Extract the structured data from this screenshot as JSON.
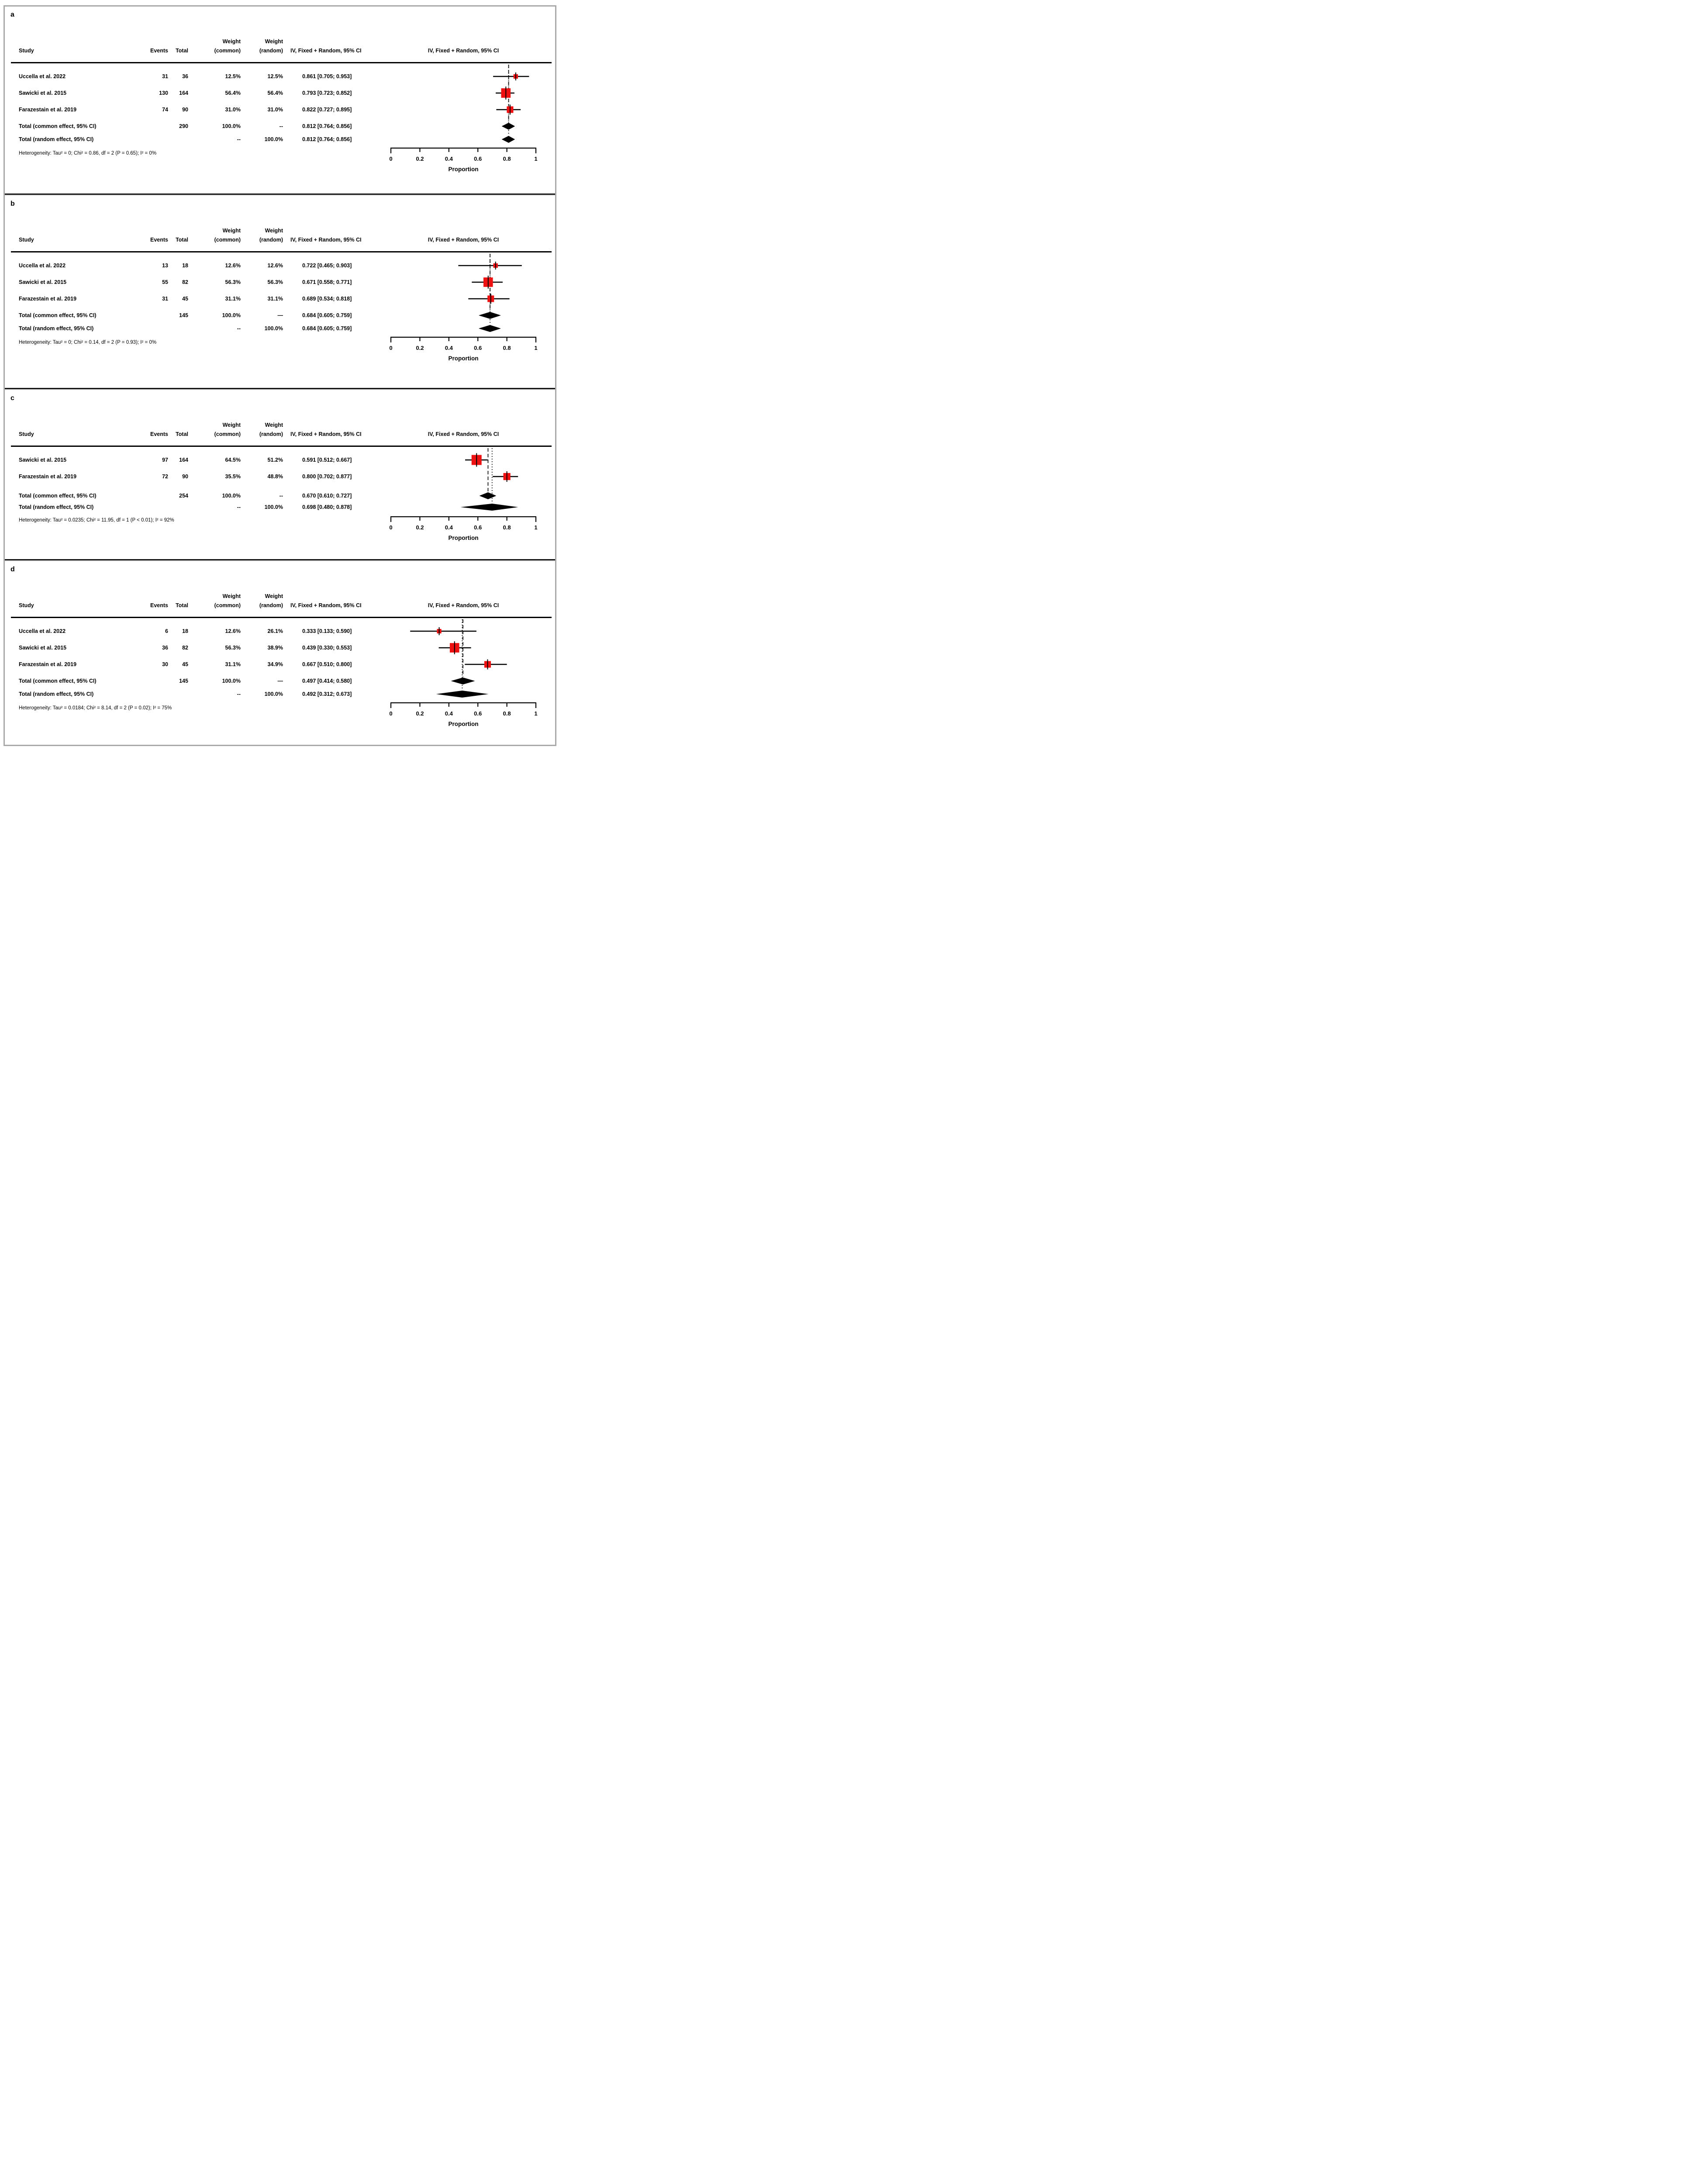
{
  "labels": {
    "columns": {
      "study": "Study",
      "events": "Events",
      "total": "Total",
      "weight_line": "Weight",
      "weight_common": "(common)",
      "weight_random": "(random)",
      "effect_ci": "IV, Fixed + Random, 95% CI",
      "plot_header": "IV, Fixed + Random, 95% CI"
    },
    "xlabel": "Proportion"
  },
  "colors": {
    "square": "#ee1111",
    "diamond": "#000000",
    "line": "#000000",
    "frame": "#a9a9a9",
    "text": "#000000"
  },
  "chart_data": [
    {
      "type": "forest",
      "panel": "a",
      "xlabel": "Proportion",
      "xlim": [
        0,
        1
      ],
      "xticks": [
        "0",
        "0.2",
        "0.4",
        "0.6",
        "0.8",
        "1"
      ],
      "studies": [
        {
          "label": "Uccella et al. 2022",
          "events": "31",
          "total": "36",
          "weight_common": "12.5%",
          "weight_random": "12.5%",
          "ci_text": "0.861 [0.705; 0.953]",
          "estimate": 0.861,
          "ci_lower": 0.705,
          "ci_upper": 0.953,
          "weight_pct": 12.5
        },
        {
          "label": "Sawicki et al. 2015",
          "events": "130",
          "total": "164",
          "weight_common": "56.4%",
          "weight_random": "56.4%",
          "ci_text": "0.793 [0.723; 0.852]",
          "estimate": 0.793,
          "ci_lower": 0.723,
          "ci_upper": 0.852,
          "weight_pct": 56.4
        },
        {
          "label": "Farazestain et al. 2019",
          "events": "74",
          "total": "90",
          "weight_common": "31.0%",
          "weight_random": "31.0%",
          "ci_text": "0.822 [0.727; 0.895]",
          "estimate": 0.822,
          "ci_lower": 0.727,
          "ci_upper": 0.895,
          "weight_pct": 31.0
        }
      ],
      "totals": [
        {
          "label": "Total (common effect, 95% CI)",
          "total": "290",
          "weight_common": "100.0%",
          "weight_random": "--",
          "ci_text": "0.812 [0.764; 0.856]",
          "estimate": 0.812,
          "ci_lower": 0.764,
          "ci_upper": 0.856
        },
        {
          "label": "Total (random effect, 95% CI)",
          "total": "",
          "weight_common": "--",
          "weight_random": "100.0%",
          "ci_text": "0.812 [0.764; 0.856]",
          "estimate": 0.812,
          "ci_lower": 0.764,
          "ci_upper": 0.856
        }
      ],
      "heterogeneity": "Heterogeneity: Tau² = 0; Chi² = 0.86, df = 2 (P = 0.65); I² = 0%"
    },
    {
      "type": "forest",
      "panel": "b",
      "xlabel": "Proportion",
      "xlim": [
        0,
        1
      ],
      "xticks": [
        "0",
        "0.2",
        "0.4",
        "0.6",
        "0.8",
        "1"
      ],
      "studies": [
        {
          "label": "Uccella et al. 2022",
          "events": "13",
          "total": "18",
          "weight_common": "12.6%",
          "weight_random": "12.6%",
          "ci_text": "0.722 [0.465; 0.903]",
          "estimate": 0.722,
          "ci_lower": 0.465,
          "ci_upper": 0.903,
          "weight_pct": 12.6
        },
        {
          "label": "Sawicki et al. 2015",
          "events": "55",
          "total": "82",
          "weight_common": "56.3%",
          "weight_random": "56.3%",
          "ci_text": "0.671 [0.558; 0.771]",
          "estimate": 0.671,
          "ci_lower": 0.558,
          "ci_upper": 0.771,
          "weight_pct": 56.3
        },
        {
          "label": "Farazestain et al. 2019",
          "events": "31",
          "total": "45",
          "weight_common": "31.1%",
          "weight_random": "31.1%",
          "ci_text": "0.689 [0.534; 0.818]",
          "estimate": 0.689,
          "ci_lower": 0.534,
          "ci_upper": 0.818,
          "weight_pct": 31.1
        }
      ],
      "totals": [
        {
          "label": "Total (common effect, 95% CI)",
          "total": "145",
          "weight_common": "100.0%",
          "weight_random": "—",
          "ci_text": "0.684 [0.605; 0.759]",
          "estimate": 0.684,
          "ci_lower": 0.605,
          "ci_upper": 0.759
        },
        {
          "label": "Total (random effect, 95% CI)",
          "total": "",
          "weight_common": "--",
          "weight_random": "100.0%",
          "ci_text": "0.684 [0.605; 0.759]",
          "estimate": 0.684,
          "ci_lower": 0.605,
          "ci_upper": 0.759
        }
      ],
      "heterogeneity": "Heterogeneity: Tau² = 0; Chi² = 0.14, df = 2 (P = 0.93); I² = 0%"
    },
    {
      "type": "forest",
      "panel": "c",
      "xlabel": "Proportion",
      "xlim": [
        0,
        1
      ],
      "xticks": [
        "0",
        "0.2",
        "0.4",
        "0.6",
        "0.8",
        "1"
      ],
      "studies": [
        {
          "label": "Sawicki et al. 2015",
          "events": "97",
          "total": "164",
          "weight_common": "64.5%",
          "weight_random": "51.2%",
          "ci_text": "0.591 [0.512; 0.667]",
          "estimate": 0.591,
          "ci_lower": 0.512,
          "ci_upper": 0.667,
          "weight_pct": 64.5
        },
        {
          "label": "Farazestain et al. 2019",
          "events": "72",
          "total": "90",
          "weight_common": "35.5%",
          "weight_random": "48.8%",
          "ci_text": "0.800 [0.702; 0.877]",
          "estimate": 0.8,
          "ci_lower": 0.702,
          "ci_upper": 0.877,
          "weight_pct": 35.5
        }
      ],
      "totals": [
        {
          "label": "Total (common effect, 95% CI)",
          "total": "254",
          "weight_common": "100.0%",
          "weight_random": "--",
          "ci_text": "0.670 [0.610; 0.727]",
          "estimate": 0.67,
          "ci_lower": 0.61,
          "ci_upper": 0.727
        },
        {
          "label": "Total (random effect, 95% CI)",
          "total": "",
          "weight_common": "--",
          "weight_random": "100.0%",
          "ci_text": "0.698 [0.480; 0.878]",
          "estimate": 0.698,
          "ci_lower": 0.48,
          "ci_upper": 0.878
        }
      ],
      "heterogeneity": "Heterogeneity: Tau² = 0.0235; Chi² = 11.95, df = 1 (P < 0.01); I² = 92%"
    },
    {
      "type": "forest",
      "panel": "d",
      "xlabel": "Proportion",
      "xlim": [
        0,
        1
      ],
      "xticks": [
        "0",
        "0.2",
        "0.4",
        "0.6",
        "0.8",
        "1"
      ],
      "studies": [
        {
          "label": "Uccella et al. 2022",
          "events": "6",
          "total": "18",
          "weight_common": "12.6%",
          "weight_random": "26.1%",
          "ci_text": "0.333 [0.133; 0.590]",
          "estimate": 0.333,
          "ci_lower": 0.133,
          "ci_upper": 0.59,
          "weight_pct": 12.6
        },
        {
          "label": "Sawicki et al. 2015",
          "events": "36",
          "total": "82",
          "weight_common": "56.3%",
          "weight_random": "38.9%",
          "ci_text": "0.439 [0.330; 0.553]",
          "estimate": 0.439,
          "ci_lower": 0.33,
          "ci_upper": 0.553,
          "weight_pct": 56.3
        },
        {
          "label": "Farazestain et al. 2019",
          "events": "30",
          "total": "45",
          "weight_common": "31.1%",
          "weight_random": "34.9%",
          "ci_text": "0.667 [0.510; 0.800]",
          "estimate": 0.667,
          "ci_lower": 0.51,
          "ci_upper": 0.8,
          "weight_pct": 31.1
        }
      ],
      "totals": [
        {
          "label": "Total (common effect, 95% CI)",
          "total": "145",
          "weight_common": "100.0%",
          "weight_random": "—",
          "ci_text": "0.497 [0.414; 0.580]",
          "estimate": 0.497,
          "ci_lower": 0.414,
          "ci_upper": 0.58
        },
        {
          "label": "Total (random effect, 95% CI)",
          "total": "",
          "weight_common": "--",
          "weight_random": "100.0%",
          "ci_text": "0.492 [0.312; 0.673]",
          "estimate": 0.492,
          "ci_lower": 0.312,
          "ci_upper": 0.673
        }
      ],
      "heterogeneity": "Heterogeneity: Tau² = 0.0184; Chi² = 8.14, df = 2 (P = 0.02); I² = 75%"
    }
  ]
}
